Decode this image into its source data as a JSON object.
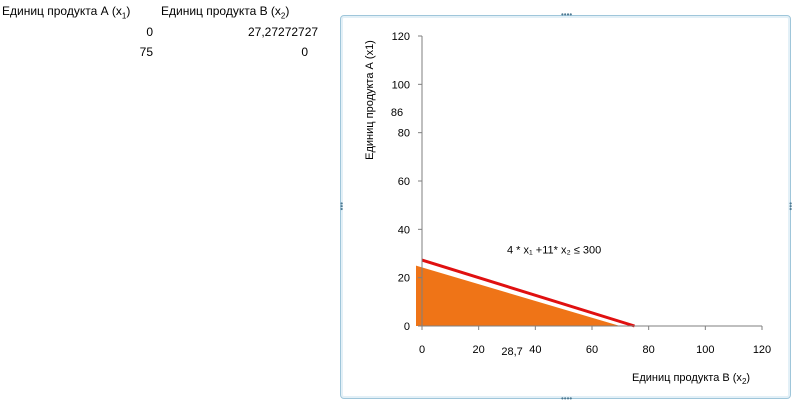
{
  "table": {
    "header_a": "Единиц продукта А (x",
    "header_a_sub": "1",
    "header_a_end": ")",
    "header_b": "Единиц продукта В (x",
    "header_b_sub": "2",
    "header_b_end": ")",
    "rows": [
      {
        "a": "0",
        "b": "27,27272727"
      },
      {
        "a": "75",
        "b": "0"
      }
    ]
  },
  "chart_data": {
    "type": "line",
    "xlabel_main": "Единиц продукта В (x",
    "xlabel_sub": "2",
    "xlabel_end": ")",
    "ylabel": "Единиц продукта А (x1)",
    "xlim": [
      0,
      120
    ],
    "ylim": [
      0,
      120
    ],
    "x_ticks": [
      "0",
      "20",
      "40",
      "60",
      "80",
      "100",
      "120"
    ],
    "y_ticks": [
      "0",
      "20",
      "40",
      "60",
      "80",
      "100",
      "120"
    ],
    "series": [
      {
        "points": [
          [
            0,
            27.27272727
          ],
          [
            75,
            0
          ]
        ],
        "color": "#e01010"
      }
    ],
    "shaded_region": {
      "points": [
        [
          0,
          0
        ],
        [
          0,
          25
        ],
        [
          72,
          0
        ]
      ],
      "color": "#ef7417"
    },
    "annotations": [
      {
        "text": "4 * x₁ +11* x₂ ≤ 300",
        "x": 30,
        "y": 30
      },
      {
        "text": "86",
        "x": -11,
        "y": 87
      },
      {
        "text": "28,7",
        "x": 28,
        "y": -12
      }
    ]
  },
  "colors": {
    "frame_border": "#9fc6da",
    "axis": "#7f7f7f"
  }
}
